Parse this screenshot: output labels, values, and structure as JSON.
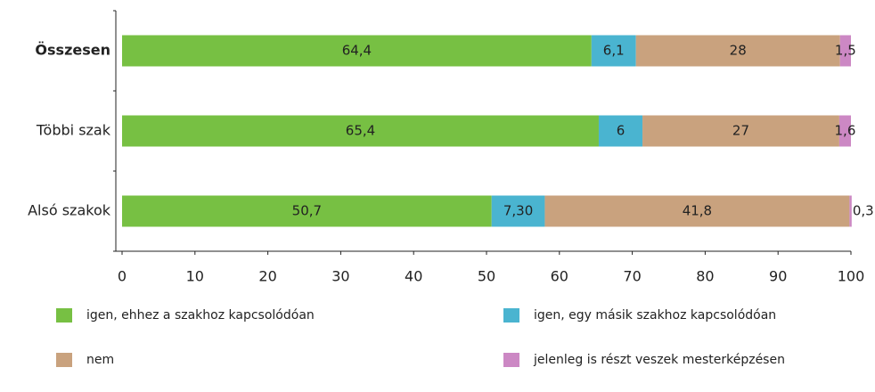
{
  "chart_data": {
    "type": "stacked-bar-horizontal",
    "categories": [
      "Összesen",
      "Többi szak",
      "Alsó szakok"
    ],
    "series": [
      {
        "name": "igen, ehhez a szakhoz kapcsolódóan",
        "color": "#77c043",
        "values": [
          64.4,
          65.4,
          50.7
        ],
        "value_labels": [
          "64,4",
          "65,4",
          "50,7"
        ]
      },
      {
        "name": "igen, egy másik szakhoz kapcsolódóan",
        "color": "#4ab4d0",
        "values": [
          6.1,
          6,
          7.3
        ],
        "value_labels": [
          "6,1",
          "6",
          "7,30"
        ]
      },
      {
        "name": "nem",
        "color": "#c9a27e",
        "values": [
          28,
          27,
          41.8
        ],
        "value_labels": [
          "28",
          "27",
          "41,8"
        ]
      },
      {
        "name": "jelenleg is részt veszek mesterképzésen",
        "color": "#cc88c4",
        "values": [
          1.5,
          1.6,
          0.3
        ],
        "value_labels": [
          "1,5",
          "1,6",
          "0,3"
        ]
      }
    ],
    "xlim": [
      0,
      100
    ],
    "xticks": [
      0,
      10,
      20,
      30,
      40,
      50,
      60,
      70,
      80,
      90,
      100
    ]
  }
}
